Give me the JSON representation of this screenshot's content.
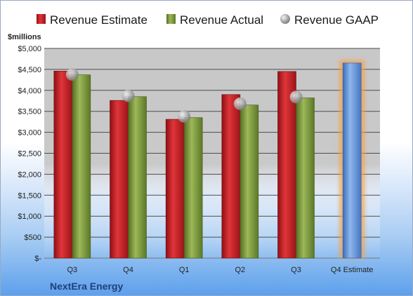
{
  "chart_data": {
    "type": "bar",
    "title": "",
    "ylabel": "$millions",
    "xlabel": "",
    "ylim": [
      0,
      5000
    ],
    "ytick_step": 500,
    "yticks": [
      "$-",
      "$500",
      "$1,000",
      "$1,500",
      "$2,000",
      "$2,500",
      "$3,000",
      "$3,500",
      "$4,000",
      "$4,500",
      "$5,000"
    ],
    "categories": [
      "Q3",
      "Q4",
      "Q1",
      "Q2",
      "Q3",
      "Q4 Estimate"
    ],
    "series": [
      {
        "name": "Revenue Estimate",
        "kind": "bar",
        "values": [
          4460,
          3760,
          3310,
          3900,
          4450,
          null
        ],
        "color": "#cc1f24"
      },
      {
        "name": "Revenue Actual",
        "kind": "bar",
        "values": [
          4370,
          3850,
          3350,
          3650,
          3820,
          null
        ],
        "color": "#7d9c3b"
      },
      {
        "name": "Revenue GAAP",
        "kind": "marker",
        "values": [
          4380,
          3870,
          3380,
          3680,
          3840,
          null
        ],
        "color": "#b9b9b9"
      },
      {
        "name": "Q4 Estimate",
        "kind": "bar",
        "values": [
          null,
          null,
          null,
          null,
          null,
          4650
        ],
        "color": "#5b8fd6",
        "highlight": "#f5a04a"
      }
    ],
    "grid": true,
    "legend_position": "top"
  },
  "footer": {
    "company": "NextEra Energy"
  }
}
